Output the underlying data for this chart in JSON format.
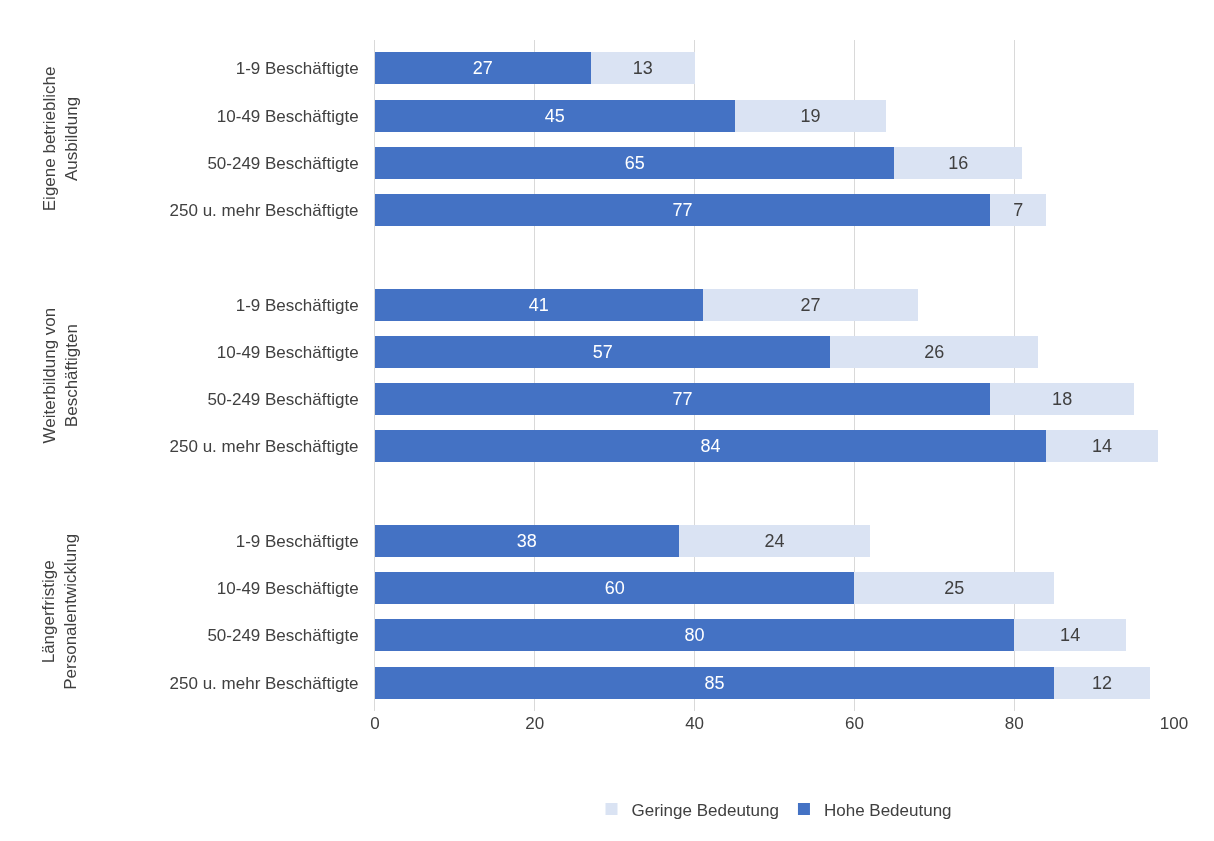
{
  "chart_data": {
    "type": "bar",
    "orientation": "horizontal",
    "stacked": true,
    "data_labels": true,
    "grid": "x",
    "legend": "bottom",
    "categories": [
      "1-9 Beschäftigte",
      "10-49 Beschäftigte",
      "50-249 Beschäftigte",
      "250 u. mehr Beschäftigte",
      "1-9 Beschäftigte",
      "10-49 Beschäftigte",
      "50-249 Beschäftigte",
      "250 u. mehr Beschäftigte",
      "1-9 Beschäftigte",
      "10-49 Beschäftigte",
      "50-249 Beschäftigte",
      "250 u. mehr Beschäftigte"
    ],
    "series": [
      {
        "name": "Hohe Bedeutung",
        "color": "#4472c4",
        "values": [
          27,
          45,
          65,
          77,
          41,
          57,
          77,
          84,
          38,
          60,
          80,
          85
        ]
      },
      {
        "name": "Geringe Bedeutung",
        "color": "#dae3f3",
        "values": [
          13,
          19,
          16,
          7,
          27,
          26,
          18,
          14,
          24,
          25,
          14,
          12
        ]
      }
    ],
    "xlim": [
      0,
      100
    ],
    "xticks": [
      0,
      20,
      40,
      60,
      80,
      100
    ],
    "annotations": [
      "Eigene betriebliche Ausbildung",
      "Weiterbildung von Beschäftigten",
      "Längerfristige Personalentwicklung"
    ]
  }
}
